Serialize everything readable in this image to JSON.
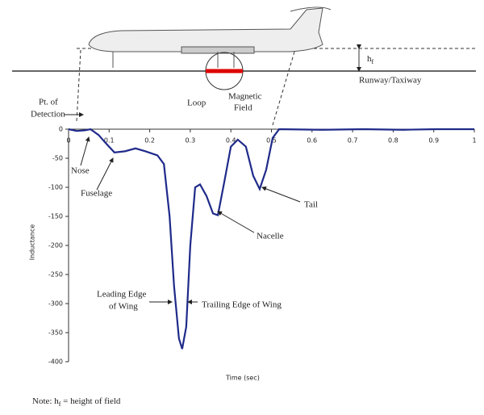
{
  "chart_data": {
    "type": "line",
    "x_label": "Time (sec)",
    "y_label": "Inductance",
    "x": [
      0,
      0.02,
      0.04,
      0.054,
      0.074,
      0.093,
      0.113,
      0.139,
      0.165,
      0.189,
      0.219,
      0.235,
      0.249,
      0.26,
      0.272,
      0.28,
      0.29,
      0.3,
      0.312,
      0.324,
      0.34,
      0.356,
      0.368,
      0.384,
      0.4,
      0.417,
      0.437,
      0.455,
      0.471,
      0.487,
      0.503,
      0.519,
      0.626,
      0.726,
      0.825,
      0.905,
      1
    ],
    "series": [
      {
        "color": "#1f2a8a",
        "values": [
          0,
          -3,
          -2,
          0,
          -10,
          -25,
          -40,
          -38,
          -33,
          -38,
          -45,
          -60,
          -150,
          -270,
          -360,
          -378,
          -340,
          -200,
          -100,
          -95,
          -115,
          -145,
          -148,
          -90,
          -30,
          -18,
          -30,
          -80,
          -103,
          -70,
          -15,
          0,
          -1,
          0,
          -1,
          0,
          0
        ]
      }
    ],
    "xlim": [
      0,
      1
    ],
    "xticks": [
      0,
      0.1,
      0.2,
      0.3,
      0.4,
      0.5,
      0.6,
      0.7,
      0.8,
      0.9,
      1
    ],
    "ylim": [
      -400,
      0
    ],
    "yticks": [
      0,
      -50,
      -100,
      -150,
      -200,
      -250,
      -300,
      -350,
      -400
    ],
    "annotations": [
      "Nose",
      "Fuselage",
      "Leading Edge",
      "of Wing",
      "Trailing Edge of Wing",
      "Nacelle",
      "Tail",
      "Pt. of",
      "Detection"
    ]
  },
  "diagram": {
    "runway": "Runway/Taxiway",
    "loop": "Loop",
    "field": [
      "Magnetic",
      "Field"
    ],
    "height": "h",
    "height_sub": "f"
  },
  "note": {
    "prefix": "Note: h",
    "sub": "f",
    "suffix": " = height of field"
  }
}
